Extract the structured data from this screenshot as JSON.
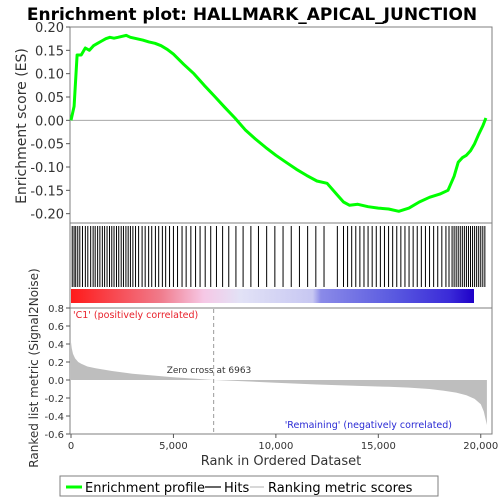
{
  "chart_data": {
    "type": "line",
    "title": "Enrichment plot: HALLMARK_APICAL_JUNCTION",
    "xlabel": "Rank in Ordered Dataset",
    "top_panel": {
      "ylabel": "Enrichment score (ES)",
      "ylim": [
        -0.22,
        0.2
      ],
      "yticks": [
        "0.20",
        "0.15",
        "0.10",
        "0.05",
        "0.00",
        "-0.05",
        "-0.10",
        "-0.15",
        "-0.20"
      ],
      "ytick_values": [
        0.2,
        0.15,
        0.1,
        0.05,
        0.0,
        -0.05,
        -0.1,
        -0.15,
        -0.2
      ],
      "xlim": [
        0,
        20500
      ],
      "series": [
        {
          "name": "Enrichment profile",
          "color": "#00ff00",
          "x": [
            0,
            150,
            300,
            500,
            700,
            900,
            1100,
            1300,
            1500,
            1700,
            1900,
            2100,
            2300,
            2500,
            2700,
            2900,
            3200,
            3500,
            3800,
            4100,
            4400,
            4700,
            5000,
            5500,
            6000,
            6500,
            7000,
            7500,
            8000,
            8500,
            9000,
            9500,
            10000,
            10500,
            11000,
            11500,
            12000,
            12500,
            13000,
            13300,
            13600,
            14000,
            14500,
            15000,
            15500,
            16000,
            16500,
            17000,
            17500,
            18000,
            18400,
            18700,
            18900,
            19100,
            19300,
            19500,
            19700,
            19900,
            20100,
            20250
          ],
          "y": [
            0.0,
            0.03,
            0.14,
            0.14,
            0.155,
            0.15,
            0.16,
            0.165,
            0.17,
            0.175,
            0.178,
            0.176,
            0.178,
            0.18,
            0.182,
            0.178,
            0.175,
            0.172,
            0.168,
            0.165,
            0.16,
            0.152,
            0.142,
            0.12,
            0.1,
            0.075,
            0.052,
            0.028,
            0.005,
            -0.02,
            -0.04,
            -0.058,
            -0.075,
            -0.09,
            -0.105,
            -0.118,
            -0.13,
            -0.135,
            -0.16,
            -0.175,
            -0.182,
            -0.18,
            -0.185,
            -0.188,
            -0.19,
            -0.195,
            -0.188,
            -0.175,
            -0.165,
            -0.158,
            -0.15,
            -0.12,
            -0.09,
            -0.08,
            -0.075,
            -0.065,
            -0.05,
            -0.03,
            -0.012,
            0.005
          ]
        }
      ]
    },
    "hits": {
      "name": "Hits",
      "positions": [
        60,
        150,
        230,
        330,
        430,
        560,
        700,
        820,
        960,
        1080,
        1180,
        1300,
        1410,
        1530,
        1640,
        1760,
        1880,
        1990,
        2100,
        2220,
        2330,
        2450,
        2560,
        2680,
        2790,
        2900,
        3020,
        3150,
        3300,
        3470,
        3620,
        3790,
        3940,
        4120,
        4280,
        4460,
        4620,
        4810,
        5000,
        5200,
        5420,
        5620,
        5850,
        6080,
        6300,
        6550,
        6820,
        7100,
        7400,
        7700,
        8050,
        8400,
        8780,
        9150,
        9550,
        9950,
        10350,
        10750,
        11150,
        11550,
        11950,
        12350,
        13000,
        13300,
        13500,
        13700,
        13900,
        14100,
        14300,
        14500,
        14700,
        14900,
        15100,
        15300,
        15500,
        15700,
        15900,
        16100,
        16300,
        16500,
        16700,
        16900,
        17100,
        17300,
        17500,
        17700,
        17900,
        18100,
        18300,
        18450,
        18600,
        18700,
        18800,
        18900,
        19000,
        19100,
        19200,
        19300,
        19400,
        19500,
        19600,
        19700,
        19800,
        19900,
        20000,
        20100,
        20200
      ]
    },
    "bottom_panel": {
      "ylabel": "Ranked list metric (Signal2Noise)",
      "ylim": [
        -0.6,
        0.8
      ],
      "yticks": [
        "0.8",
        "0.6",
        "0.4",
        "0.2",
        "0.0",
        "-0.2",
        "-0.4",
        "-0.6"
      ],
      "ytick_values": [
        0.8,
        0.6,
        0.4,
        0.2,
        0.0,
        -0.2,
        -0.4,
        -0.6
      ],
      "series": [
        {
          "name": "Ranking metric scores",
          "color": "#bebebe",
          "x": [
            0,
            40,
            100,
            200,
            350,
            500,
            800,
            1200,
            2000,
            3000,
            4000,
            5000,
            6000,
            6963,
            8000,
            10000,
            12000,
            14000,
            15500,
            16500,
            17500,
            18200,
            18800,
            19300,
            19700,
            20000,
            20150,
            20300
          ],
          "y": [
            0.42,
            0.35,
            0.29,
            0.24,
            0.2,
            0.18,
            0.15,
            0.13,
            0.1,
            0.07,
            0.05,
            0.03,
            0.015,
            0.0,
            -0.01,
            -0.03,
            -0.05,
            -0.065,
            -0.075,
            -0.085,
            -0.1,
            -0.12,
            -0.14,
            -0.17,
            -0.21,
            -0.27,
            -0.35,
            -0.5
          ]
        }
      ],
      "zero_cross_rank": 6963,
      "zero_cross_label": "Zero cross at 6963",
      "positive_label": "'C1' (positively correlated)",
      "negative_label": "'Remaining' (negatively correlated)"
    },
    "xaxis": {
      "ticks": [
        "0",
        "5,000",
        "10,000",
        "15,000",
        "20,000"
      ],
      "tick_values": [
        0,
        5000,
        10000,
        15000,
        20000
      ]
    },
    "legend": {
      "placement": "bottom",
      "items": [
        {
          "label": "Enrichment profile",
          "color": "#00ff00"
        },
        {
          "label": "Hits",
          "color": "#000000"
        },
        {
          "label": "Ranking metric scores",
          "color": "#bebebe"
        }
      ]
    }
  }
}
